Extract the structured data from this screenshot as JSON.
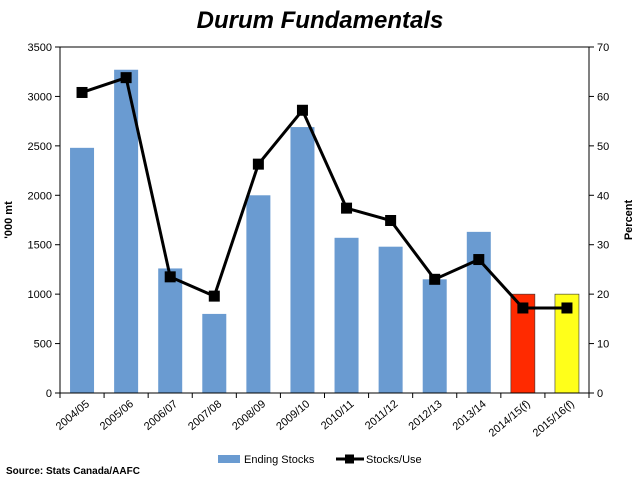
{
  "chart_data": {
    "type": "bar+line",
    "title": "Durum Fundamentals",
    "source": "Source: Stats Canada/AAFC",
    "categories": [
      "2004/05",
      "2005/06",
      "2006/07",
      "2007/08",
      "2008/09",
      "2009/10",
      "2010/11",
      "2011/12",
      "2012/13",
      "2013/14",
      "2014/15(f)",
      "2015/16(f)"
    ],
    "series": [
      {
        "name": "Ending Stocks",
        "type": "bar",
        "axis": "left",
        "values": [
          2480,
          3270,
          1260,
          800,
          2000,
          2690,
          1570,
          1480,
          1150,
          1630,
          1000,
          1000
        ],
        "colors": [
          "#6a9bd1",
          "#6a9bd1",
          "#6a9bd1",
          "#6a9bd1",
          "#6a9bd1",
          "#6a9bd1",
          "#6a9bd1",
          "#6a9bd1",
          "#6a9bd1",
          "#6a9bd1",
          "#ff2a00",
          "#ffff1a"
        ]
      },
      {
        "name": "Stocks/Use",
        "type": "line",
        "axis": "right",
        "values": [
          60.8,
          63.8,
          23.5,
          19.6,
          46.3,
          57.2,
          37.4,
          34.9,
          23.0,
          27.0,
          17.2,
          17.2
        ],
        "color": "#000000"
      }
    ],
    "ylabel": "'000 mt",
    "y2label": "Percent",
    "ylim": [
      0,
      3500
    ],
    "yticks": [
      "0",
      "500",
      "1000",
      "1500",
      "2000",
      "2500",
      "3000",
      "3500"
    ],
    "y2lim": [
      0,
      70
    ],
    "y2ticks": [
      "0",
      "10",
      "20",
      "30",
      "40",
      "50",
      "60",
      "70"
    ],
    "grid": false,
    "legend": "bottom"
  }
}
